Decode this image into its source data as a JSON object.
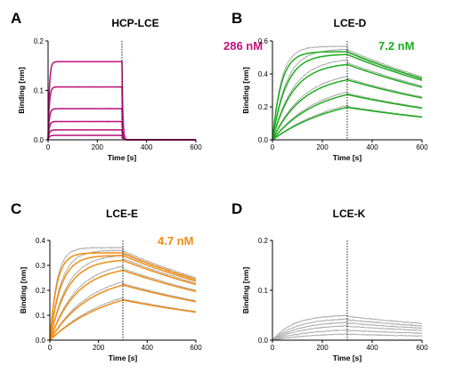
{
  "figure": {
    "panels": [
      {
        "letter": "A",
        "title": "HCP-LCE",
        "kd": "286 nM",
        "color": "#c0127c",
        "ylabel": "Binding [nm]",
        "xlabel": "Time [s]",
        "yticks": [
          "0.0",
          "0.1",
          "0.2"
        ],
        "xticks": [
          "0",
          "200",
          "400",
          "600"
        ]
      },
      {
        "letter": "B",
        "title": "LCE-D",
        "kd": "7.2 nM",
        "color": "#1dad1d",
        "ylabel": "Binding [nm]",
        "xlabel": "Time [s]",
        "yticks": [
          "0.0",
          "0.2",
          "0.4",
          "0.6"
        ],
        "xticks": [
          "0",
          "200",
          "400",
          "600"
        ]
      },
      {
        "letter": "C",
        "title": "LCE-E",
        "kd": "4.7 nM",
        "color": "#f28c12",
        "ylabel": "Binding [nm]",
        "xlabel": "Time [s]",
        "yticks": [
          "0.0",
          "0.1",
          "0.2",
          "0.3",
          "0.4"
        ],
        "xticks": [
          "0",
          "200",
          "400",
          "600"
        ]
      },
      {
        "letter": "D",
        "title": "LCE-K",
        "kd": "",
        "color": "#a6a6a6",
        "ylabel": "Binding [nm]",
        "xlabel": "Time [s]",
        "yticks": [
          "0.0",
          "0.1",
          "0.2"
        ],
        "xticks": [
          "0",
          "200",
          "400",
          "600"
        ]
      }
    ]
  },
  "chart_data": [
    {
      "type": "line",
      "title": "HCP-LCE",
      "annotation": "286 nM",
      "xlabel": "Time [s]",
      "ylabel": "Binding [nm]",
      "xlim": [
        0,
        600
      ],
      "ylim": [
        0,
        0.2
      ],
      "dissociation_start": 300,
      "association_end": 300,
      "fit_color": "#c0127c",
      "curves": [
        {
          "plateau": 0.158,
          "kon": 0.2,
          "koff": 0.3
        },
        {
          "plateau": 0.107,
          "kon": 0.2,
          "koff": 0.3
        },
        {
          "plateau": 0.063,
          "kon": 0.2,
          "koff": 0.3
        },
        {
          "plateau": 0.037,
          "kon": 0.2,
          "koff": 0.3
        },
        {
          "plateau": 0.02,
          "kon": 0.2,
          "koff": 0.3
        },
        {
          "plateau": 0.009,
          "kon": 0.2,
          "koff": 0.3
        }
      ]
    },
    {
      "type": "line",
      "title": "LCE-D",
      "annotation": "7.2 nM",
      "xlabel": "Time [s]",
      "ylabel": "Binding [nm]",
      "xlim": [
        0,
        600
      ],
      "ylim": [
        0,
        0.6
      ],
      "dissociation_start": 300,
      "association_end": 300,
      "fit_color": "#1dad1d",
      "curves": [
        {
          "plateau": 0.535,
          "kon": 0.028,
          "koff": 0.0012
        },
        {
          "plateau": 0.52,
          "kon": 0.018,
          "koff": 0.0012
        },
        {
          "plateau": 0.47,
          "kon": 0.012,
          "koff": 0.0012
        },
        {
          "plateau": 0.4,
          "kon": 0.008,
          "koff": 0.0012
        },
        {
          "plateau": 0.34,
          "kon": 0.0055,
          "koff": 0.0012
        },
        {
          "plateau": 0.29,
          "kon": 0.0038,
          "koff": 0.0012
        }
      ]
    },
    {
      "type": "line",
      "title": "LCE-E",
      "annotation": "4.7 nM",
      "xlabel": "Time [s]",
      "ylabel": "Binding [nm]",
      "xlim": [
        0,
        600
      ],
      "ylim": [
        0,
        0.4
      ],
      "dissociation_start": 300,
      "association_end": 300,
      "fit_color": "#f28c12",
      "curves": [
        {
          "plateau": 0.35,
          "kon": 0.035,
          "koff": 0.0012
        },
        {
          "plateau": 0.34,
          "kon": 0.022,
          "koff": 0.0012
        },
        {
          "plateau": 0.325,
          "kon": 0.014,
          "koff": 0.0012
        },
        {
          "plateau": 0.3,
          "kon": 0.009,
          "koff": 0.0012
        },
        {
          "plateau": 0.265,
          "kon": 0.006,
          "koff": 0.0012
        },
        {
          "plateau": 0.23,
          "kon": 0.004,
          "koff": 0.0012
        }
      ]
    },
    {
      "type": "line",
      "title": "LCE-K",
      "annotation": "",
      "xlabel": "Time [s]",
      "ylabel": "Binding [nm]",
      "xlim": [
        0,
        600
      ],
      "ylim": [
        0,
        0.2
      ],
      "dissociation_start": 300,
      "association_end": 300,
      "fit_color": "",
      "curves": [
        {
          "plateau": 0.048,
          "kon": 0.012,
          "koff": 0.0012
        },
        {
          "plateau": 0.042,
          "kon": 0.01,
          "koff": 0.0012
        },
        {
          "plateau": 0.036,
          "kon": 0.009,
          "koff": 0.0012
        },
        {
          "plateau": 0.03,
          "kon": 0.008,
          "koff": 0.0012
        },
        {
          "plateau": 0.022,
          "kon": 0.007,
          "koff": 0.0012
        },
        {
          "plateau": 0.014,
          "kon": 0.006,
          "koff": 0.0012
        }
      ]
    }
  ]
}
